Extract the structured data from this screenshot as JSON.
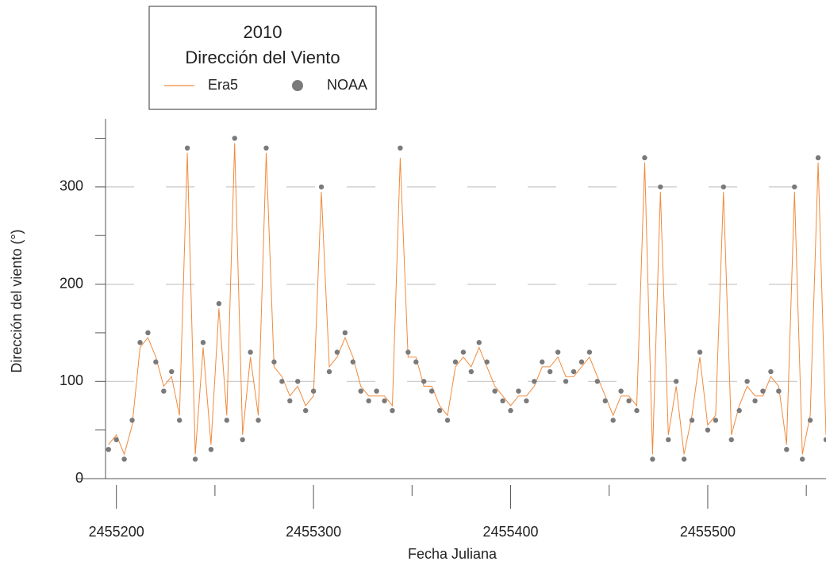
{
  "chart_data": {
    "type": "line_scatter",
    "title": "2010",
    "subtitle": "Dirección del Viento",
    "x_label": "Fecha Juliana",
    "y_label": "Dirección del viento (°)",
    "xlim": [
      2455180,
      2455560
    ],
    "ylim": [
      0,
      370
    ],
    "xticks": [
      2455200,
      2455300,
      2455400,
      2455500
    ],
    "xminor_ticks": [
      2455250,
      2455350,
      2455450,
      2455550
    ],
    "yticks": [
      0,
      100,
      200,
      300
    ],
    "yminor_ticks": [
      50,
      150,
      250,
      350
    ],
    "grid_lines": [
      100,
      200,
      300
    ],
    "grid": true,
    "legend": "top-left",
    "x": [
      2455196,
      2455200,
      2455204,
      2455208,
      2455212,
      2455216,
      2455220,
      2455224,
      2455228,
      2455232,
      2455236,
      2455240,
      2455244,
      2455248,
      2455252,
      2455256,
      2455260,
      2455264,
      2455268,
      2455272,
      2455276,
      2455280,
      2455284,
      2455288,
      2455292,
      2455296,
      2455300,
      2455304,
      2455308,
      2455312,
      2455316,
      2455320,
      2455324,
      2455328,
      2455332,
      2455336,
      2455340,
      2455344,
      2455348,
      2455352,
      2455356,
      2455360,
      2455364,
      2455368,
      2455372,
      2455376,
      2455380,
      2455384,
      2455388,
      2455392,
      2455396,
      2455400,
      2455404,
      2455408,
      2455412,
      2455416,
      2455420,
      2455424,
      2455428,
      2455432,
      2455436,
      2455440,
      2455444,
      2455448,
      2455452,
      2455456,
      2455460,
      2455464,
      2455468,
      2455472,
      2455476,
      2455480,
      2455484,
      2455488,
      2455492,
      2455496,
      2455500,
      2455504,
      2455508,
      2455512,
      2455516,
      2455520,
      2455524,
      2455528,
      2455532,
      2455536,
      2455540,
      2455544,
      2455548,
      2455552,
      2455556,
      2455560
    ],
    "series": [
      {
        "name": "Era5",
        "kind": "line",
        "color": "#f08a3c",
        "values": [
          35,
          45,
          25,
          55,
          135,
          145,
          125,
          95,
          105,
          65,
          335,
          25,
          135,
          35,
          175,
          65,
          345,
          45,
          125,
          65,
          335,
          115,
          105,
          85,
          95,
          75,
          85,
          295,
          115,
          125,
          145,
          125,
          95,
          85,
          85,
          85,
          75,
          330,
          125,
          125,
          95,
          95,
          75,
          65,
          115,
          125,
          115,
          135,
          115,
          95,
          85,
          75,
          85,
          85,
          95,
          115,
          115,
          125,
          105,
          105,
          115,
          125,
          105,
          85,
          65,
          85,
          85,
          75,
          325,
          25,
          295,
          45,
          95,
          25,
          65,
          125,
          55,
          65,
          295,
          45,
          75,
          95,
          85,
          85,
          105,
          95,
          35,
          295,
          25,
          65,
          325,
          45
        ]
      },
      {
        "name": "NOAA",
        "kind": "scatter",
        "color": "#7a7a7a",
        "values": [
          30,
          40,
          20,
          60,
          140,
          150,
          120,
          90,
          110,
          60,
          340,
          20,
          140,
          30,
          180,
          60,
          350,
          40,
          130,
          60,
          340,
          120,
          100,
          80,
          100,
          70,
          90,
          300,
          110,
          130,
          150,
          120,
          90,
          80,
          90,
          80,
          70,
          340,
          130,
          120,
          100,
          90,
          70,
          60,
          120,
          130,
          110,
          140,
          120,
          90,
          80,
          70,
          90,
          80,
          100,
          120,
          110,
          130,
          100,
          110,
          120,
          130,
          100,
          80,
          60,
          90,
          80,
          70,
          330,
          20,
          300,
          40,
          100,
          20,
          60,
          130,
          50,
          60,
          300,
          40,
          70,
          100,
          80,
          90,
          110,
          90,
          30,
          300,
          20,
          60,
          330,
          40
        ]
      }
    ]
  }
}
